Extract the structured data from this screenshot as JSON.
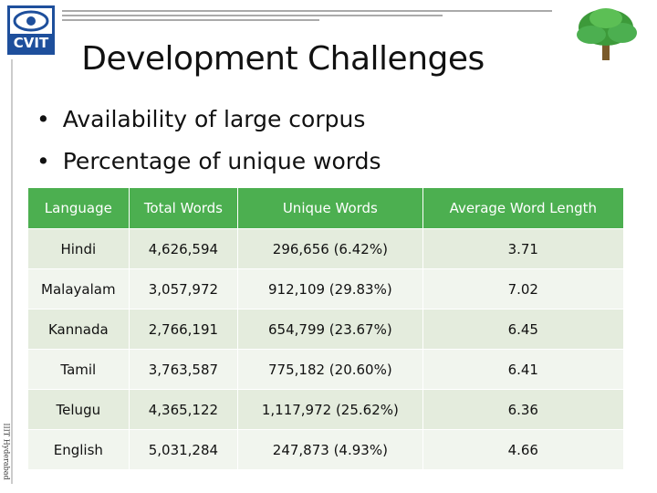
{
  "logo": {
    "text": "CVIT"
  },
  "side_text": "IIIT Hyderabad",
  "title": "Development Challenges",
  "bullets": [
    "Availability of large corpus",
    "Percentage of unique words"
  ],
  "table": {
    "header": [
      "Language",
      "Total Words",
      "Unique Words",
      "Average Word Length"
    ],
    "rows": [
      [
        "Hindi",
        "4,626,594",
        "296,656 (6.42%)",
        "3.71"
      ],
      [
        "Malayalam",
        "3,057,972",
        "912,109 (29.83%)",
        "7.02"
      ],
      [
        "Kannada",
        "2,766,191",
        "654,799 (23.67%)",
        "6.45"
      ],
      [
        "Tamil",
        "3,763,587",
        "775,182 (20.60%)",
        "6.41"
      ],
      [
        "Telugu",
        "4,365,122",
        "1,117,972 (25.62%)",
        "6.36"
      ],
      [
        "English",
        "5,031,284",
        "247,873 (4.93%)",
        "4.66"
      ]
    ]
  }
}
